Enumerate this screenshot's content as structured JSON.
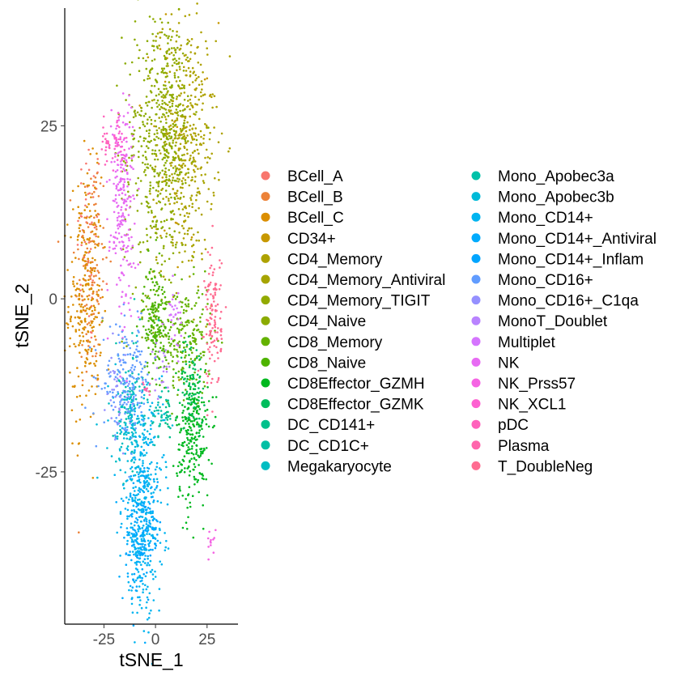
{
  "chart_data": {
    "type": "scatter",
    "xlabel": "tSNE_1",
    "ylabel": "tSNE_2",
    "xlim": [
      -44,
      40
    ],
    "ylim": [
      -47,
      42
    ],
    "x_ticks": [
      -25,
      0,
      25
    ],
    "y_ticks": [
      -25,
      0,
      25
    ],
    "tick_labels_x": [
      "-25",
      "0",
      "25"
    ],
    "tick_labels_y": [
      "-25",
      "0",
      "25"
    ],
    "grid": false,
    "legend_position": "right",
    "legend_columns": 2,
    "series": [
      {
        "name": "BCell_A",
        "color": "#F8766D",
        "center": [
          -32,
          8
        ],
        "spread": [
          3,
          8
        ],
        "count": 60
      },
      {
        "name": "BCell_B",
        "color": "#EC8239",
        "center": [
          -31,
          4
        ],
        "spread": [
          4,
          9
        ],
        "count": 120
      },
      {
        "name": "BCell_C",
        "color": "#DB8E00",
        "center": [
          -34,
          0
        ],
        "spread": [
          4,
          9
        ],
        "count": 260
      },
      {
        "name": "CD34+",
        "color": "#C79800",
        "center": [
          9,
          20
        ],
        "spread": [
          10,
          10
        ],
        "count": 40
      },
      {
        "name": "CD4_Memory",
        "color": "#AEA200",
        "center": [
          15,
          23
        ],
        "spread": [
          7,
          9
        ],
        "count": 360
      },
      {
        "name": "CD4_Memory_Antiviral",
        "color": "#A6A400",
        "center": [
          13,
          18
        ],
        "spread": [
          6,
          8
        ],
        "count": 80
      },
      {
        "name": "CD4_Memory_TIGIT",
        "color": "#92AA00",
        "center": [
          6,
          28
        ],
        "spread": [
          6,
          6
        ],
        "count": 200
      },
      {
        "name": "CD4_Naive",
        "color": "#8BAB00",
        "center": [
          0,
          20
        ],
        "spread": [
          8,
          11
        ],
        "count": 360
      },
      {
        "name": "CD8_Memory",
        "color": "#64B200",
        "center": [
          15,
          -6
        ],
        "spread": [
          6,
          4
        ],
        "count": 200
      },
      {
        "name": "CD8_Naive",
        "color": "#4EB300",
        "center": [
          0,
          -3
        ],
        "spread": [
          3,
          4
        ],
        "count": 180
      },
      {
        "name": "CD8Effector_GZMH",
        "color": "#00B81F",
        "center": [
          18,
          -20
        ],
        "spread": [
          4,
          5
        ],
        "count": 260
      },
      {
        "name": "CD8Effector_GZMK",
        "color": "#00BD5C",
        "center": [
          18,
          -12
        ],
        "spread": [
          3,
          3
        ],
        "count": 80
      },
      {
        "name": "DC_CD141+",
        "color": "#00C08B",
        "center": [
          6,
          -16
        ],
        "spread": [
          1,
          2
        ],
        "count": 20
      },
      {
        "name": "DC_CD1C+",
        "color": "#00BFA5",
        "center": [
          2,
          -17
        ],
        "spread": [
          2,
          2
        ],
        "count": 30
      },
      {
        "name": "Megakaryocyte",
        "color": "#00BDC2",
        "center": [
          -13,
          -17
        ],
        "spread": [
          3,
          4
        ],
        "count": 60
      },
      {
        "name": "Mono_Apobec3a",
        "color": "#00C1A9",
        "center": [
          -13,
          -14
        ],
        "spread": [
          4,
          5
        ],
        "count": 60
      },
      {
        "name": "Mono_Apobec3b",
        "color": "#00BAD8",
        "center": [
          -10,
          -19
        ],
        "spread": [
          6,
          4
        ],
        "count": 120
      },
      {
        "name": "Mono_CD14+",
        "color": "#00B4F0",
        "center": [
          -6,
          -31
        ],
        "spread": [
          5,
          7
        ],
        "count": 380
      },
      {
        "name": "Mono_CD14+_Antiviral",
        "color": "#00ABFD",
        "center": [
          -10,
          -36
        ],
        "spread": [
          3,
          4
        ],
        "count": 80
      },
      {
        "name": "Mono_CD14+_Inflam",
        "color": "#00A5FF",
        "center": [
          -5,
          -33
        ],
        "spread": [
          4,
          4
        ],
        "count": 100
      },
      {
        "name": "Mono_CD16+",
        "color": "#619CFF",
        "center": [
          -14,
          -12
        ],
        "spread": [
          6,
          4
        ],
        "count": 180
      },
      {
        "name": "Mono_CD16+_C1qa",
        "color": "#9590FF",
        "center": [
          -18,
          -14
        ],
        "spread": [
          3,
          3
        ],
        "count": 40
      },
      {
        "name": "MonoT_Doublet",
        "color": "#B983FF",
        "center": [
          3,
          -10
        ],
        "spread": [
          2,
          2
        ],
        "count": 20
      },
      {
        "name": "Multiplet",
        "color": "#D575FE",
        "center": [
          9,
          -2
        ],
        "spread": [
          2,
          2
        ],
        "count": 30
      },
      {
        "name": "NK",
        "color": "#E76BF3",
        "center": [
          -16,
          14
        ],
        "spread": [
          3,
          8
        ],
        "count": 220
      },
      {
        "name": "NK_Prss57",
        "color": "#F564E3",
        "center": [
          27,
          -35
        ],
        "spread": [
          1,
          1
        ],
        "count": 12
      },
      {
        "name": "NK_XCL1",
        "color": "#FD61D1",
        "center": [
          -18,
          22
        ],
        "spread": [
          2,
          2
        ],
        "count": 40
      },
      {
        "name": "pDC",
        "color": "#FF62BC",
        "center": [
          -24,
          23
        ],
        "spread": [
          1,
          2
        ],
        "count": 20
      },
      {
        "name": "Plasma",
        "color": "#FF65AC",
        "center": [
          -4,
          -13
        ],
        "spread": [
          1,
          1
        ],
        "count": 10
      },
      {
        "name": "T_DoubleNeg",
        "color": "#FF6C91",
        "center": [
          28,
          -3
        ],
        "spread": [
          2,
          5
        ],
        "count": 120
      }
    ]
  }
}
